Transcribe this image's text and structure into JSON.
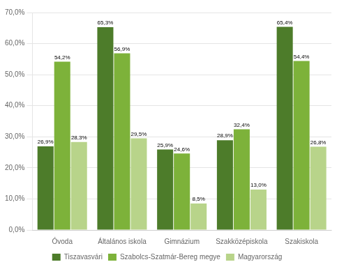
{
  "chart_data": {
    "type": "bar",
    "categories": [
      "Óvoda",
      "Általános iskola",
      "Gimnázium",
      "Szakközépiskola",
      "Szakiskola"
    ],
    "series": [
      {
        "name": "Tiszavasvári",
        "color": "#4d7c2a",
        "values": [
          26.9,
          65.3,
          25.9,
          28.9,
          65.4
        ],
        "value_labels": [
          "26,9%",
          "65,3%",
          "25,9%",
          "28,9%",
          "65,4%"
        ]
      },
      {
        "name": "Szabolcs-Szatmár-Bereg megye",
        "color": "#7db23a",
        "values": [
          54.2,
          56.9,
          24.6,
          32.4,
          54.4
        ],
        "value_labels": [
          "54,2%",
          "56,9%",
          "24,6%",
          "32,4%",
          "54,4%"
        ]
      },
      {
        "name": "Magyarország",
        "color": "#b8d48a",
        "values": [
          28.3,
          29.5,
          8.5,
          13.0,
          26.8
        ],
        "value_labels": [
          "28,3%",
          "29,5%",
          "8,5%",
          "13,0%",
          "26,8%"
        ]
      }
    ],
    "ylim": [
      0,
      70
    ],
    "yticks": [
      {
        "value": 0,
        "label": "0,0%"
      },
      {
        "value": 10,
        "label": "10,0%"
      },
      {
        "value": 20,
        "label": "20,0%"
      },
      {
        "value": 30,
        "label": "30,0%"
      },
      {
        "value": 40,
        "label": "40,0%"
      },
      {
        "value": 50,
        "label": "50,0%"
      },
      {
        "value": 60,
        "label": "60,0%"
      },
      {
        "value": 70,
        "label": "70,0%"
      }
    ],
    "grid": true,
    "legend": "bottom",
    "data_labels": true
  }
}
